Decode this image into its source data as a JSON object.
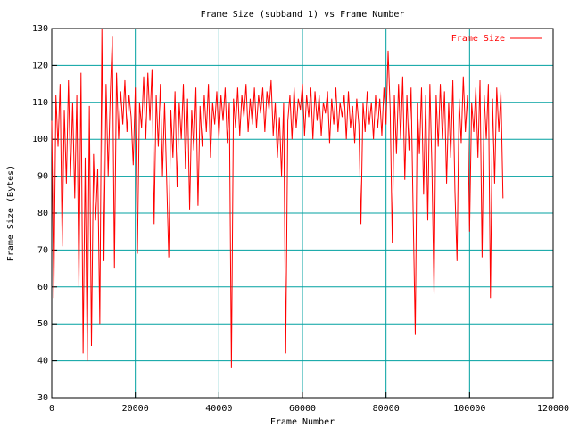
{
  "chart_data": {
    "type": "line",
    "title": "Frame Size (subband 1) vs Frame Number",
    "xlabel": "Frame Number",
    "ylabel": "Frame Size (Bytes)",
    "x": [
      0,
      500,
      1000,
      1500,
      2000,
      2500,
      3000,
      3500,
      4000,
      4500,
      5000,
      5500,
      6000,
      6500,
      7000,
      7500,
      8000,
      8500,
      9000,
      9500,
      10000,
      10500,
      11000,
      11500,
      12000,
      12500,
      13000,
      13500,
      14000,
      14500,
      15000,
      15500,
      16000,
      16500,
      17000,
      17500,
      18000,
      18500,
      19000,
      19500,
      20000,
      20500,
      21000,
      21500,
      22000,
      22500,
      23000,
      23500,
      24000,
      24500,
      25000,
      25500,
      26000,
      26500,
      27000,
      27500,
      28000,
      28500,
      29000,
      29500,
      30000,
      30500,
      31000,
      31500,
      32000,
      32500,
      33000,
      33500,
      34000,
      34500,
      35000,
      35500,
      36000,
      36500,
      37000,
      37500,
      38000,
      38500,
      39000,
      39500,
      40000,
      40500,
      41000,
      41500,
      42000,
      42500,
      43000,
      43500,
      44000,
      44500,
      45000,
      45500,
      46000,
      46500,
      47000,
      47500,
      48000,
      48500,
      49000,
      49500,
      50000,
      50500,
      51000,
      51500,
      52000,
      52500,
      53000,
      53500,
      54000,
      54500,
      55000,
      55500,
      56000,
      56500,
      57000,
      57500,
      58000,
      58500,
      59000,
      59500,
      60000,
      60500,
      61000,
      61500,
      62000,
      62500,
      63000,
      63500,
      64000,
      64500,
      65000,
      65500,
      66000,
      66500,
      67000,
      67500,
      68000,
      68500,
      69000,
      69500,
      70000,
      70500,
      71000,
      71500,
      72000,
      72500,
      73000,
      73500,
      74000,
      74500,
      75000,
      75500,
      76000,
      76500,
      77000,
      77500,
      78000,
      78500,
      79000,
      79500,
      80000,
      80500,
      81000,
      81500,
      82000,
      82500,
      83000,
      83500,
      84000,
      84500,
      85000,
      85500,
      86000,
      86500,
      87000,
      87500,
      88000,
      88500,
      89000,
      89500,
      90000,
      90500,
      91000,
      91500,
      92000,
      92500,
      93000,
      93500,
      94000,
      94500,
      95000,
      95500,
      96000,
      96500,
      97000,
      97500,
      98000,
      98500,
      99000,
      99500,
      100000,
      100500,
      101000,
      101500,
      102000,
      102500,
      103000,
      103500,
      104000,
      104500,
      105000,
      105500,
      106000,
      106500,
      107000,
      107500,
      108000
    ],
    "series": [
      {
        "name": "Frame Size",
        "color": "#ff0000",
        "values": [
          105,
          57,
          112,
          98,
          115,
          71,
          108,
          88,
          116,
          90,
          110,
          84,
          112,
          60,
          118,
          42,
          95,
          40,
          109,
          44,
          96,
          78,
          92,
          50,
          130,
          67,
          115,
          90,
          112,
          128,
          65,
          118,
          100,
          113,
          104,
          116,
          102,
          112,
          106,
          93,
          114,
          69,
          110,
          103,
          117,
          100,
          118,
          105,
          119,
          77,
          112,
          98,
          115,
          90,
          110,
          89,
          68,
          108,
          95,
          113,
          87,
          110,
          100,
          115,
          92,
          111,
          81,
          108,
          97,
          114,
          82,
          109,
          98,
          112,
          102,
          115,
          95,
          110,
          104,
          113,
          100,
          112,
          105,
          114,
          99,
          110,
          38,
          111,
          103,
          114,
          101,
          112,
          106,
          115,
          102,
          111,
          104,
          114,
          103,
          112,
          107,
          114,
          102,
          113,
          108,
          116,
          101,
          110,
          95,
          106,
          90,
          110,
          42,
          105,
          112,
          100,
          114,
          103,
          111,
          108,
          115,
          101,
          112,
          106,
          114,
          100,
          113,
          105,
          112,
          101,
          110,
          107,
          113,
          99,
          111,
          104,
          114,
          102,
          110,
          106,
          112,
          100,
          113,
          103,
          109,
          99,
          111,
          104,
          77,
          110,
          102,
          113,
          104,
          110,
          100,
          112,
          103,
          111,
          101,
          114,
          104,
          124,
          108,
          72,
          112,
          96,
          115,
          100,
          117,
          89,
          112,
          97,
          114,
          80,
          47,
          110,
          96,
          114,
          85,
          112,
          78,
          115,
          92,
          58,
          112,
          98,
          115,
          100,
          113,
          88,
          110,
          95,
          116,
          86,
          67,
          111,
          99,
          117,
          102,
          112,
          75,
          110,
          102,
          114,
          95,
          116,
          68,
          112,
          100,
          115,
          57,
          111,
          88,
          114,
          102,
          113,
          84
        ]
      }
    ],
    "xlim": [
      0,
      120000
    ],
    "ylim": [
      30,
      130
    ],
    "xticks": [
      0,
      20000,
      40000,
      60000,
      80000,
      100000,
      120000
    ],
    "yticks": [
      30,
      40,
      50,
      60,
      70,
      80,
      90,
      100,
      110,
      120,
      130
    ],
    "grid": true,
    "legend": "upper right"
  }
}
